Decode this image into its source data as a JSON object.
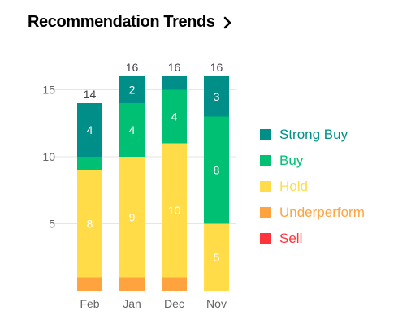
{
  "header": {
    "title": "Recommendation Trends",
    "chevron_icon": "chevron-right-icon"
  },
  "chart_data": {
    "type": "bar",
    "stacked": true,
    "categories": [
      "Feb",
      "Jan",
      "Dec",
      "Nov"
    ],
    "totals": [
      14,
      16,
      16,
      16
    ],
    "ylim": [
      0,
      16
    ],
    "yticks": [
      5,
      10,
      15
    ],
    "series": [
      {
        "name": "Sell",
        "color": "#ff333a",
        "values": [
          0,
          0,
          0,
          0
        ],
        "labels": [
          "",
          "",
          "",
          ""
        ]
      },
      {
        "name": "Underperform",
        "color": "#ffa33f",
        "values": [
          1,
          1,
          1,
          0
        ],
        "labels": [
          "",
          "",
          "",
          ""
        ]
      },
      {
        "name": "Hold",
        "color": "#ffdc48",
        "values": [
          8,
          9,
          10,
          5
        ],
        "labels": [
          "8",
          "9",
          "10",
          "5"
        ]
      },
      {
        "name": "Buy",
        "color": "#00c073",
        "values": [
          1,
          4,
          4,
          8
        ],
        "labels": [
          "",
          "4",
          "4",
          "8"
        ]
      },
      {
        "name": "Strong Buy",
        "color": "#008f88",
        "values": [
          4,
          2,
          1,
          3
        ],
        "labels": [
          "4",
          "2",
          "",
          "3"
        ]
      }
    ],
    "legend": [
      "Strong Buy",
      "Buy",
      "Hold",
      "Underperform",
      "Sell"
    ]
  }
}
